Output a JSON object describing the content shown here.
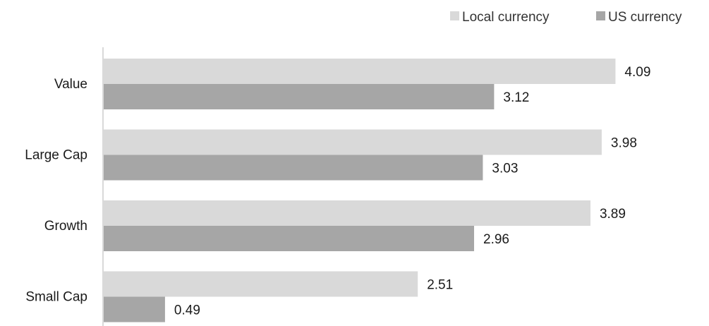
{
  "chart_data": {
    "type": "bar",
    "orientation": "horizontal",
    "categories": [
      "Value",
      "Large Cap",
      "Growth",
      "Small Cap"
    ],
    "series": [
      {
        "name": "Local currency",
        "values": [
          4.09,
          3.98,
          3.89,
          2.51
        ],
        "color": "#d9d9d9"
      },
      {
        "name": "US currency",
        "values": [
          3.12,
          3.03,
          2.96,
          0.49
        ],
        "color": "#a6a6a6"
      }
    ],
    "title": "",
    "xlabel": "",
    "ylabel": "",
    "xlim": [
      0,
      4.33
    ],
    "grid": false,
    "legend": "top-right"
  }
}
